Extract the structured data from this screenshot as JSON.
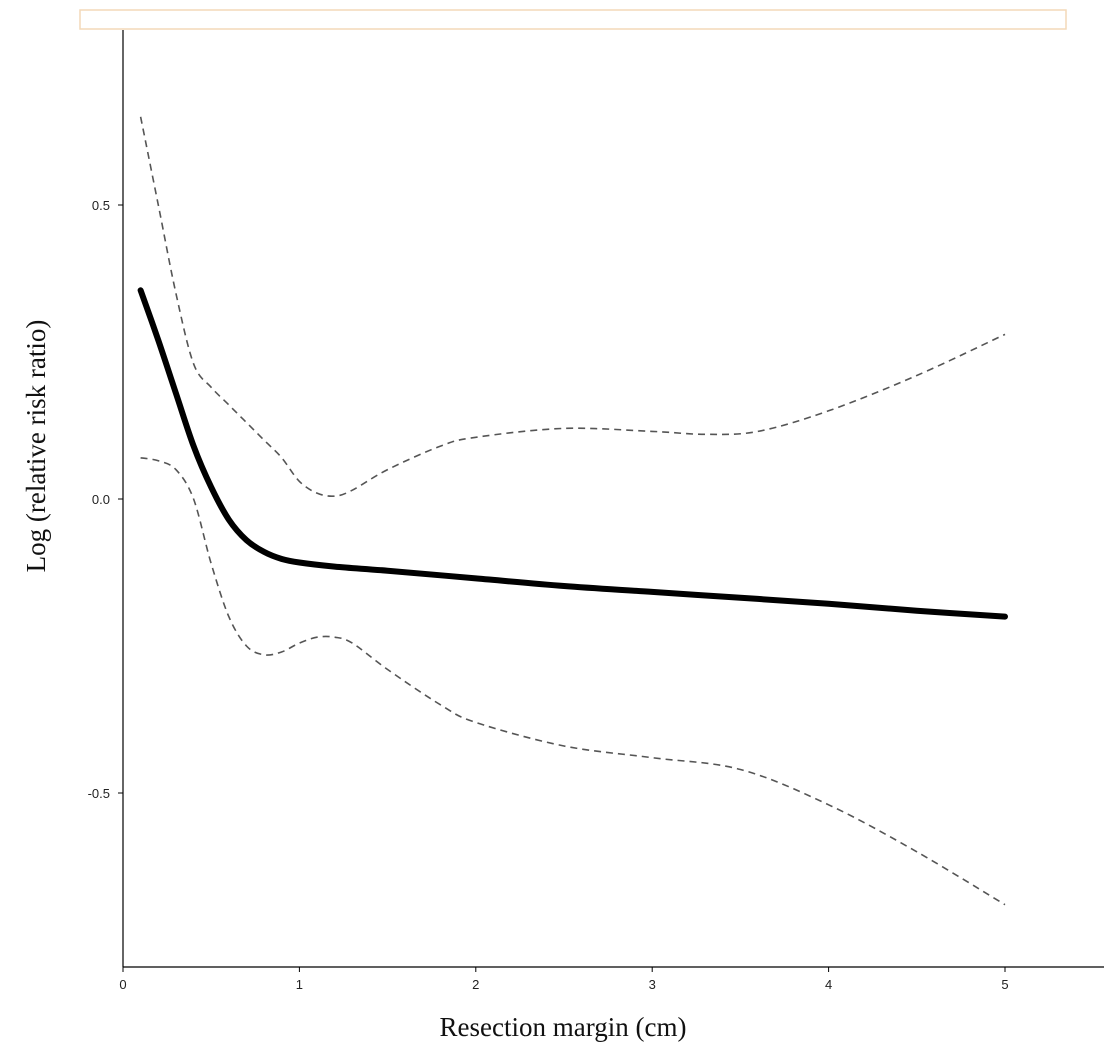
{
  "chart_data": {
    "type": "line",
    "title": "",
    "xlabel": "Resection margin (cm)",
    "ylabel": "Log (relative risk ratio)",
    "xlim": [
      0,
      5.6
    ],
    "ylim": [
      -0.8,
      0.8
    ],
    "x_ticks": [
      0,
      1,
      2,
      3,
      4,
      5
    ],
    "y_ticks": [
      -0.5,
      0.0,
      0.5
    ],
    "x_tick_labels": [
      "0",
      "1",
      "2",
      "3",
      "4",
      "5"
    ],
    "y_tick_labels": [
      "-0.5",
      "0.0",
      "0.5"
    ],
    "grid": false,
    "legend": "none",
    "colors": {
      "estimate": "#000000",
      "ci": "#555555",
      "frame": "#f3d9b8"
    },
    "series": [
      {
        "role": "estimate",
        "style": "solid",
        "x": [
          0.1,
          0.2,
          0.3,
          0.4,
          0.5,
          0.6,
          0.7,
          0.8,
          0.9,
          1.0,
          1.2,
          1.5,
          2.0,
          2.5,
          3.0,
          3.5,
          4.0,
          4.5,
          5.0
        ],
        "y": [
          0.355,
          0.27,
          0.18,
          0.09,
          0.02,
          -0.035,
          -0.07,
          -0.09,
          -0.102,
          -0.108,
          -0.115,
          -0.122,
          -0.135,
          -0.148,
          -0.158,
          -0.168,
          -0.178,
          -0.19,
          -0.2
        ]
      },
      {
        "role": "upper_ci",
        "style": "dashed",
        "x": [
          0.1,
          0.2,
          0.3,
          0.4,
          0.5,
          0.6,
          0.7,
          0.8,
          0.9,
          1.0,
          1.1,
          1.2,
          1.3,
          1.5,
          1.8,
          2.0,
          2.5,
          3.0,
          3.3,
          3.6,
          4.0,
          4.5,
          5.0
        ],
        "y": [
          0.65,
          0.5,
          0.35,
          0.23,
          0.19,
          0.16,
          0.13,
          0.1,
          0.07,
          0.03,
          0.01,
          0.005,
          0.015,
          0.05,
          0.09,
          0.105,
          0.12,
          0.115,
          0.11,
          0.115,
          0.15,
          0.21,
          0.28
        ]
      },
      {
        "role": "lower_ci",
        "style": "dashed",
        "x": [
          0.1,
          0.2,
          0.3,
          0.4,
          0.5,
          0.6,
          0.7,
          0.8,
          0.9,
          1.0,
          1.1,
          1.2,
          1.3,
          1.5,
          1.8,
          2.0,
          2.5,
          3.0,
          3.5,
          4.0,
          4.5,
          5.0
        ],
        "y": [
          0.07,
          0.065,
          0.05,
          0.0,
          -0.11,
          -0.2,
          -0.25,
          -0.265,
          -0.26,
          -0.245,
          -0.235,
          -0.235,
          -0.245,
          -0.29,
          -0.35,
          -0.38,
          -0.42,
          -0.44,
          -0.46,
          -0.52,
          -0.6,
          -0.69
        ]
      }
    ]
  }
}
